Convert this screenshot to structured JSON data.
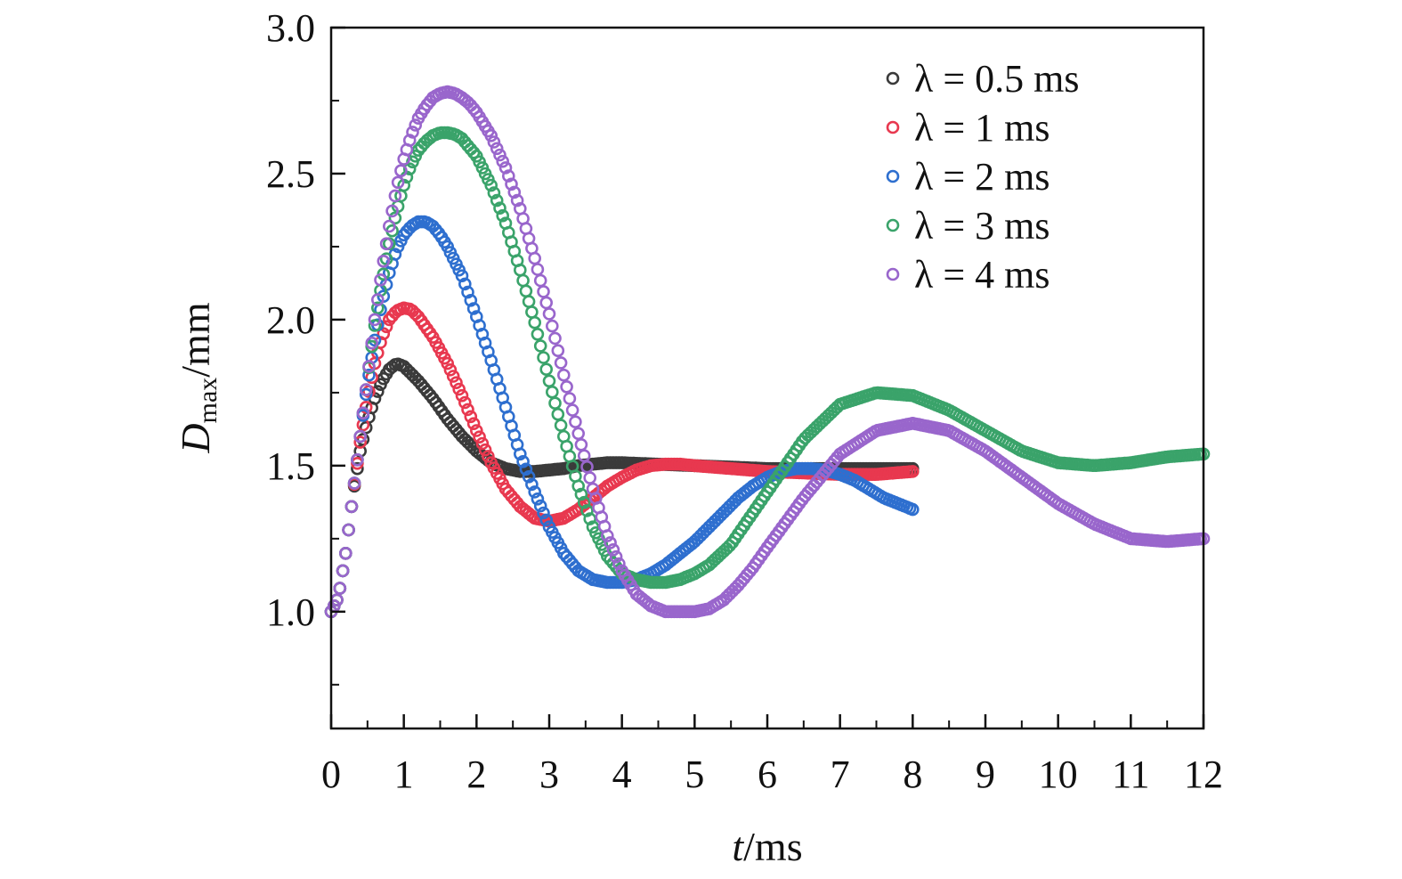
{
  "chart_data": {
    "type": "scatter",
    "xlabel": {
      "italic": "t",
      "rest": "/ms"
    },
    "ylabel": {
      "italic": "D",
      "sub": "max",
      "rest": "/mm"
    },
    "xlim": [
      0,
      12
    ],
    "ylim": [
      0.6,
      3.0
    ],
    "xticks": [
      0,
      1,
      2,
      3,
      4,
      5,
      6,
      7,
      8,
      9,
      10,
      11,
      12
    ],
    "yticks": [
      1.0,
      1.5,
      2.0,
      2.5,
      3.0
    ],
    "ytick_labels": [
      "1.0",
      "1.5",
      "2.0",
      "2.5",
      "3.0"
    ],
    "grid": false,
    "legend_position": "top-right",
    "series": [
      {
        "name": "λ = 0.5 ms",
        "color": "#3a3a3a",
        "x": [
          0,
          0.1,
          0.2,
          0.3,
          0.4,
          0.5,
          0.6,
          0.7,
          0.8,
          0.9,
          1.0,
          1.2,
          1.4,
          1.6,
          1.8,
          2.0,
          2.2,
          2.4,
          2.6,
          2.8,
          3.0,
          3.2,
          3.4,
          3.6,
          3.8,
          4.0,
          4.5,
          5.0,
          5.5,
          6.0,
          6.5,
          7.0,
          7.5,
          8.0
        ],
        "y": [
          1.0,
          1.05,
          1.2,
          1.4,
          1.55,
          1.65,
          1.73,
          1.79,
          1.83,
          1.85,
          1.84,
          1.79,
          1.73,
          1.66,
          1.6,
          1.55,
          1.51,
          1.49,
          1.48,
          1.48,
          1.485,
          1.49,
          1.5,
          1.505,
          1.51,
          1.51,
          1.505,
          1.5,
          1.495,
          1.49,
          1.49,
          1.49,
          1.49,
          1.49
        ]
      },
      {
        "name": "λ = 1 ms",
        "color": "#e8384f",
        "x": [
          0,
          0.1,
          0.2,
          0.3,
          0.4,
          0.5,
          0.6,
          0.7,
          0.8,
          0.9,
          1.0,
          1.1,
          1.2,
          1.4,
          1.6,
          1.8,
          2.0,
          2.2,
          2.4,
          2.6,
          2.8,
          3.0,
          3.2,
          3.4,
          3.6,
          3.8,
          4.0,
          4.2,
          4.4,
          4.6,
          4.8,
          5.0,
          5.5,
          6.0,
          6.5,
          7.0,
          7.5,
          8.0
        ],
        "y": [
          1.0,
          1.05,
          1.2,
          1.4,
          1.58,
          1.73,
          1.85,
          1.94,
          2.0,
          2.03,
          2.04,
          2.035,
          2.01,
          1.94,
          1.85,
          1.74,
          1.62,
          1.51,
          1.42,
          1.36,
          1.32,
          1.31,
          1.32,
          1.35,
          1.39,
          1.43,
          1.46,
          1.485,
          1.5,
          1.505,
          1.505,
          1.5,
          1.49,
          1.48,
          1.475,
          1.47,
          1.47,
          1.48
        ]
      },
      {
        "name": "λ = 2 ms",
        "color": "#2e6fcf",
        "x": [
          0,
          0.1,
          0.2,
          0.3,
          0.4,
          0.5,
          0.6,
          0.7,
          0.8,
          0.9,
          1.0,
          1.1,
          1.2,
          1.3,
          1.4,
          1.5,
          1.6,
          1.8,
          2.0,
          2.2,
          2.4,
          2.6,
          2.8,
          3.0,
          3.2,
          3.4,
          3.6,
          3.8,
          4.0,
          4.2,
          4.4,
          4.6,
          4.8,
          5.0,
          5.2,
          5.4,
          5.6,
          5.8,
          6.0,
          6.2,
          6.4,
          6.6,
          6.8,
          7.0,
          7.2,
          7.4,
          7.6,
          7.8,
          8.0
        ],
        "y": [
          1.0,
          1.05,
          1.2,
          1.4,
          1.6,
          1.78,
          1.93,
          2.06,
          2.16,
          2.24,
          2.29,
          2.32,
          2.335,
          2.335,
          2.32,
          2.29,
          2.25,
          2.15,
          2.01,
          1.86,
          1.7,
          1.54,
          1.41,
          1.29,
          1.2,
          1.14,
          1.11,
          1.1,
          1.1,
          1.11,
          1.13,
          1.16,
          1.2,
          1.24,
          1.29,
          1.34,
          1.39,
          1.43,
          1.46,
          1.48,
          1.49,
          1.49,
          1.485,
          1.47,
          1.45,
          1.42,
          1.39,
          1.37,
          1.35
        ]
      },
      {
        "name": "λ = 3 ms",
        "color": "#3aa36a",
        "x": [
          0,
          0.1,
          0.2,
          0.3,
          0.4,
          0.5,
          0.6,
          0.7,
          0.8,
          0.9,
          1.0,
          1.1,
          1.2,
          1.3,
          1.4,
          1.5,
          1.6,
          1.7,
          1.8,
          2.0,
          2.2,
          2.4,
          2.6,
          2.8,
          3.0,
          3.2,
          3.4,
          3.6,
          3.8,
          4.0,
          4.2,
          4.4,
          4.6,
          4.8,
          5.0,
          5.2,
          5.5,
          6.0,
          6.5,
          7.0,
          7.5,
          8.0,
          8.5,
          9.0,
          9.5,
          10.0,
          10.5,
          11.0,
          11.5,
          12.0
        ],
        "y": [
          1.0,
          1.05,
          1.2,
          1.4,
          1.6,
          1.8,
          1.98,
          2.13,
          2.26,
          2.37,
          2.46,
          2.53,
          2.58,
          2.61,
          2.63,
          2.64,
          2.64,
          2.635,
          2.62,
          2.56,
          2.46,
          2.33,
          2.17,
          1.99,
          1.79,
          1.6,
          1.43,
          1.29,
          1.19,
          1.13,
          1.11,
          1.1,
          1.1,
          1.11,
          1.13,
          1.16,
          1.23,
          1.41,
          1.59,
          1.71,
          1.75,
          1.74,
          1.69,
          1.62,
          1.55,
          1.51,
          1.5,
          1.51,
          1.53,
          1.54
        ]
      },
      {
        "name": "λ = 4 ms",
        "color": "#9966cc",
        "x": [
          0,
          0.1,
          0.2,
          0.3,
          0.4,
          0.5,
          0.6,
          0.7,
          0.8,
          0.9,
          1.0,
          1.1,
          1.2,
          1.3,
          1.4,
          1.5,
          1.6,
          1.7,
          1.8,
          1.9,
          2.0,
          2.2,
          2.4,
          2.6,
          2.8,
          3.0,
          3.2,
          3.4,
          3.6,
          3.8,
          4.0,
          4.2,
          4.4,
          4.6,
          4.8,
          5.0,
          5.2,
          5.4,
          5.6,
          5.8,
          6.0,
          6.5,
          7.0,
          7.5,
          8.0,
          8.5,
          9.0,
          9.5,
          10.0,
          10.5,
          11.0,
          11.5,
          12.0
        ],
        "y": [
          1.0,
          1.05,
          1.2,
          1.4,
          1.6,
          1.8,
          2.0,
          2.17,
          2.32,
          2.45,
          2.55,
          2.63,
          2.69,
          2.73,
          2.76,
          2.775,
          2.78,
          2.775,
          2.76,
          2.74,
          2.71,
          2.63,
          2.52,
          2.38,
          2.21,
          2.02,
          1.81,
          1.61,
          1.42,
          1.26,
          1.14,
          1.06,
          1.02,
          1.0,
          1.0,
          1.0,
          1.01,
          1.04,
          1.09,
          1.15,
          1.22,
          1.39,
          1.54,
          1.62,
          1.645,
          1.62,
          1.55,
          1.46,
          1.37,
          1.3,
          1.25,
          1.24,
          1.25
        ]
      }
    ]
  }
}
